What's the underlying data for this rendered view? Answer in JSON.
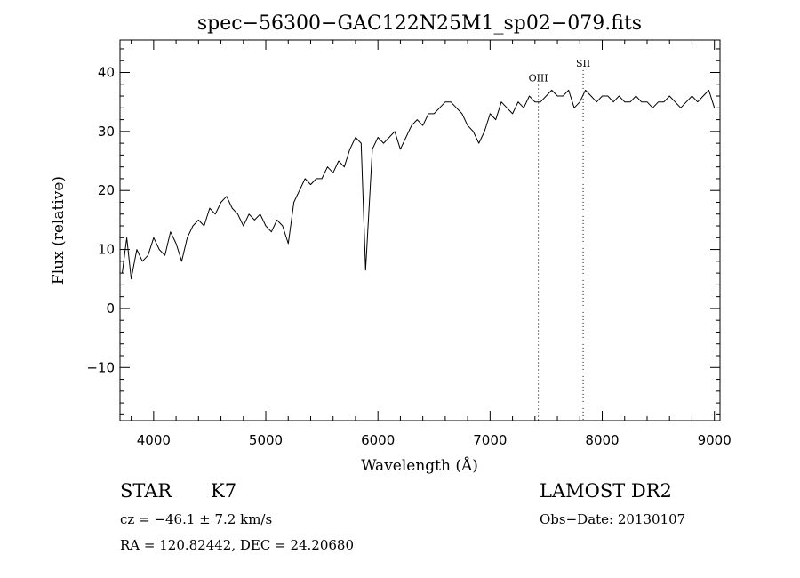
{
  "chart_data": {
    "type": "line",
    "title": "spec−56300−GAC122N25M1_sp02−079.fits",
    "xlabel": "Wavelength (Å)",
    "ylabel": "Flux (relative)",
    "xlim": [
      3700,
      9050
    ],
    "ylim": [
      -19,
      45.5
    ],
    "x_ticks": [
      4000,
      5000,
      6000,
      7000,
      8000,
      9000
    ],
    "x_tick_labels": [
      "4000",
      "5000",
      "6000",
      "7000",
      "8000",
      "9000"
    ],
    "y_ticks": [
      -10,
      0,
      10,
      20,
      30,
      40
    ],
    "y_tick_labels": [
      "−10",
      "0",
      "10",
      "20",
      "30",
      "40"
    ],
    "grid": false,
    "series": [
      {
        "x": [
          3720,
          3760,
          3800,
          3850,
          3900,
          3950,
          4000,
          4050,
          4100,
          4150,
          4200,
          4250,
          4300,
          4350,
          4400,
          4450,
          4500,
          4550,
          4600,
          4650,
          4700,
          4750,
          4800,
          4850,
          4900,
          4950,
          5000,
          5050,
          5100,
          5150,
          5200,
          5250,
          5300,
          5350,
          5400,
          5450,
          5500,
          5550,
          5600,
          5650,
          5700,
          5750,
          5800,
          5850,
          5890,
          5950,
          6000,
          6050,
          6100,
          6150,
          6200,
          6250,
          6300,
          6350,
          6400,
          6450,
          6500,
          6550,
          6600,
          6650,
          6700,
          6750,
          6800,
          6850,
          6900,
          6950,
          7000,
          7050,
          7100,
          7150,
          7200,
          7250,
          7300,
          7350,
          7400,
          7450,
          7500,
          7550,
          7600,
          7650,
          7700,
          7750,
          7800,
          7850,
          7900,
          7950,
          8000,
          8050,
          8100,
          8150,
          8200,
          8250,
          8300,
          8350,
          8400,
          8450,
          8500,
          8550,
          8600,
          8650,
          8700,
          8750,
          8800,
          8850,
          8900,
          8950,
          9000
        ],
        "y": [
          6,
          12,
          5,
          10,
          8,
          9,
          12,
          10,
          9,
          13,
          11,
          8,
          12,
          14,
          15,
          14,
          17,
          16,
          18,
          19,
          17,
          16,
          14,
          16,
          15,
          16,
          14,
          13,
          15,
          14,
          11,
          18,
          20,
          22,
          21,
          22,
          22,
          24,
          23,
          25,
          24,
          27,
          29,
          28,
          6.5,
          27,
          29,
          28,
          29,
          30,
          27,
          29,
          31,
          32,
          31,
          33,
          33,
          34,
          35,
          35,
          34,
          33,
          31,
          30,
          28,
          30,
          33,
          32,
          35,
          34,
          33,
          35,
          34,
          36,
          35,
          35,
          36,
          37,
          36,
          36,
          37,
          34,
          35,
          37,
          36,
          35,
          36,
          36,
          35,
          36,
          35,
          35,
          36,
          35,
          35,
          34,
          35,
          35,
          36,
          35,
          34,
          35,
          36,
          35,
          36,
          37,
          34
        ]
      }
    ],
    "line_markers": [
      {
        "label": "OIII",
        "x": 7430,
        "label_y": 38.5
      },
      {
        "label": "SII",
        "x": 7830,
        "label_y": 41.0
      }
    ]
  },
  "info": {
    "object_class": "STAR",
    "subclass": "K7",
    "survey": "LAMOST DR2",
    "redshift_text": "cz = −46.1 ± 7.2 km/s",
    "obs_date_text": "Obs−Date: 20130107",
    "coords_text": "RA = 120.82442, DEC =  24.20680"
  }
}
